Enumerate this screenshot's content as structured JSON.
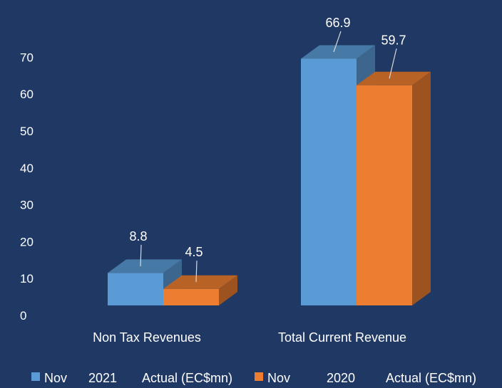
{
  "chart_data": {
    "type": "bar",
    "categories": [
      "Non Tax Revenues",
      "Total Current Revenue"
    ],
    "series": [
      {
        "name": "Nov 2021 Actual (EC$mn)",
        "values": [
          8.8,
          66.9
        ],
        "color": "#5B9BD5"
      },
      {
        "name": "Nov 2020 Actual (EC$mn)",
        "values": [
          4.5,
          59.7
        ],
        "color": "#ED7D31"
      }
    ],
    "data_labels": [
      "8.8",
      "4.5",
      "66.9",
      "59.7"
    ],
    "ylim": [
      0,
      70
    ],
    "yticks": [
      "0",
      "10",
      "20",
      "30",
      "40",
      "50",
      "60",
      "70"
    ],
    "title": "",
    "xlabel": "",
    "ylabel": "",
    "grid": false,
    "legend_position": "bottom",
    "legend": [
      {
        "parts": [
          "Nov",
          "2021",
          "Actual (EC$mn)"
        ],
        "color": "#5B9BD5"
      },
      {
        "parts": [
          "Nov",
          "2020",
          "Actual (EC$mn)"
        ],
        "color": "#ED7D31"
      }
    ],
    "background": "#203864",
    "style": "3d-clustered-column"
  }
}
